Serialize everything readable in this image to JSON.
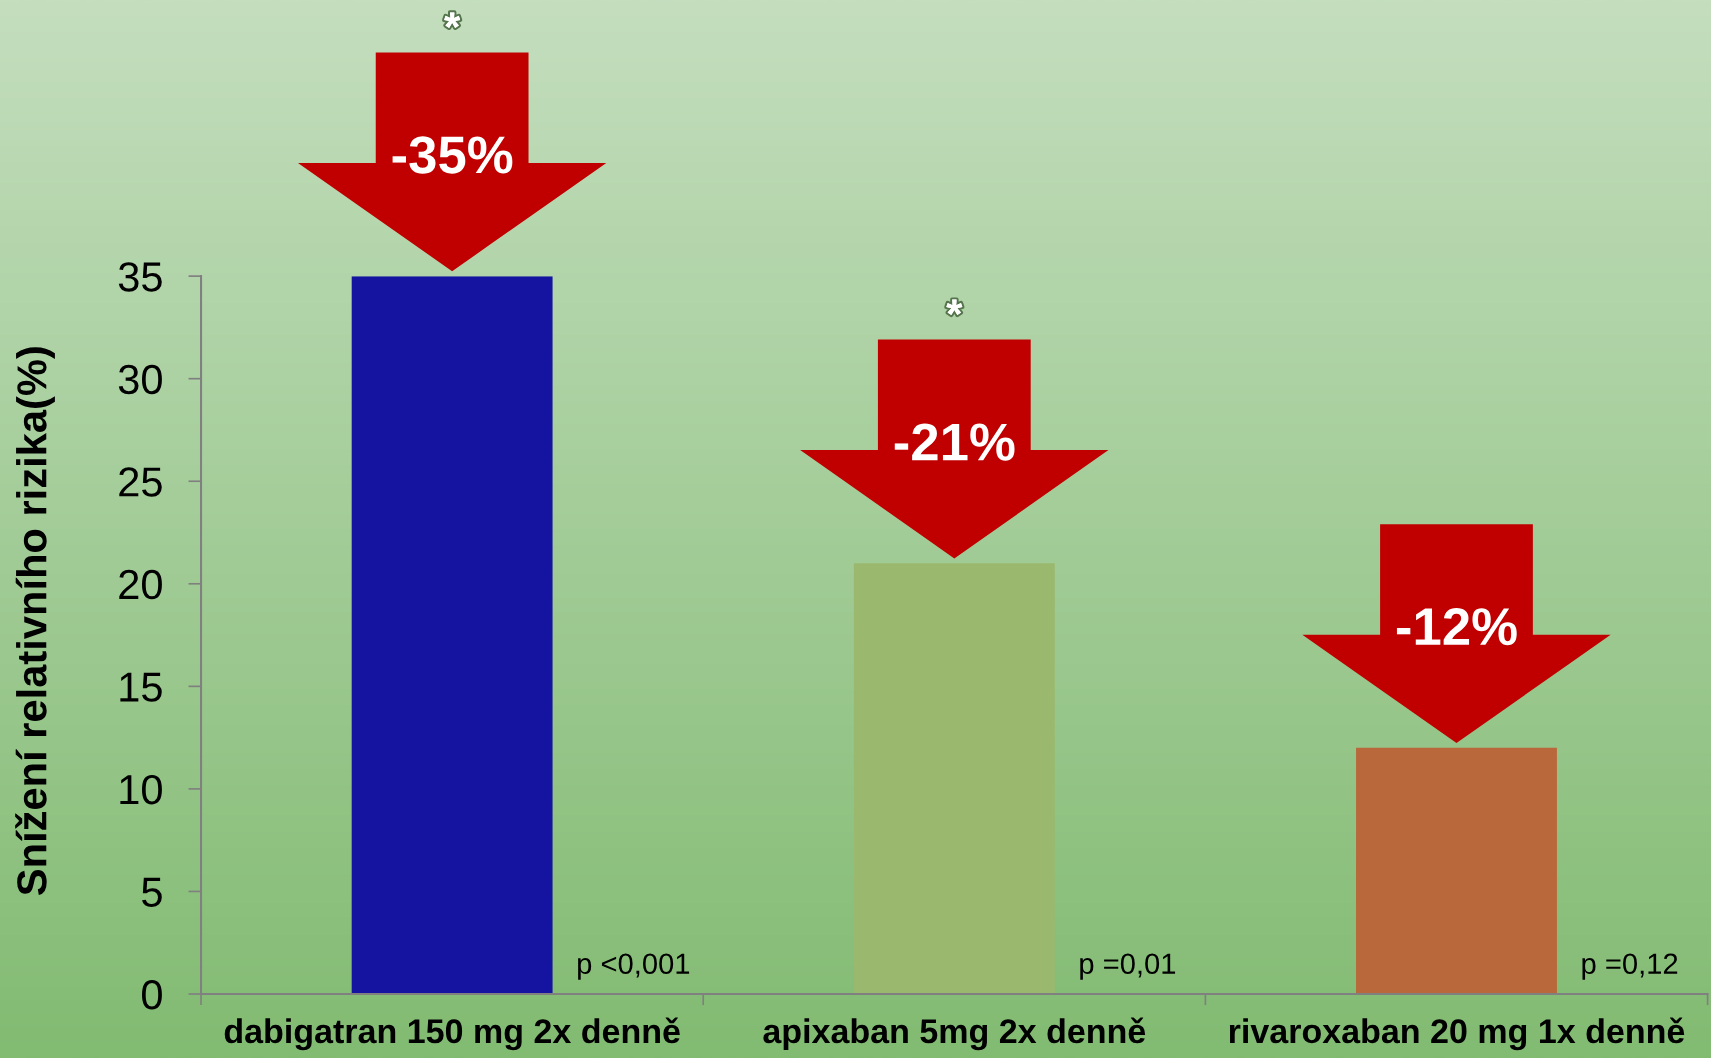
{
  "chart_data": {
    "type": "bar",
    "ylabel": "Snížení relativního rizika(%)",
    "categories": [
      "dabigatran 150 mg 2x denně",
      "apixaban 5mg 2x denně",
      "rivaroxaban 20 mg 1x denně"
    ],
    "values": [
      35,
      21,
      12
    ],
    "colors": [
      "#1414a0",
      "#9ab86e",
      "#b8683a"
    ],
    "ylim": [
      0,
      35
    ],
    "yticks": [
      0,
      5,
      10,
      15,
      20,
      25,
      30,
      35
    ],
    "annotations": [
      "p <0,001",
      "p =0,01",
      "p =0,12",
      "*",
      "*",
      {
        "text": "-35%",
        "x": "dabigatran 150 mg 2x denně",
        "y": 35
      },
      {
        "text": "-21%",
        "x": "apixaban 5mg 2x denně",
        "y": 21
      },
      {
        "text": "-12%",
        "x": "rivaroxaban 20 mg 1x denně",
        "y": 12
      }
    ]
  }
}
